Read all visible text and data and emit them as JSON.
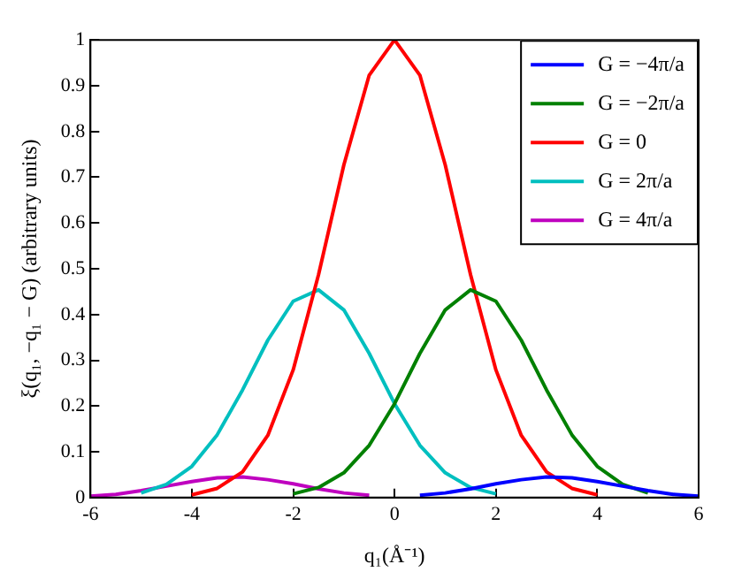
{
  "chart_data": {
    "type": "line",
    "xlabel": "q₁(Å⁻¹)",
    "ylabel": "ξ(q₁, −q₁ − G) (arbitrary units)",
    "x": [
      -6,
      -5.5,
      -5,
      -4.5,
      -4,
      -3.5,
      -3,
      -2.5,
      -2,
      -1.5,
      -1,
      -0.5,
      0,
      0.5,
      1,
      1.5,
      2,
      2.5,
      3,
      3.5,
      4,
      4.5,
      5,
      5.5,
      6
    ],
    "series": [
      {
        "name": "G = −4π/a",
        "color": "#0000ff",
        "values": [
          null,
          null,
          null,
          null,
          null,
          null,
          null,
          null,
          null,
          null,
          null,
          null,
          null,
          0.005,
          0.01,
          0.019,
          0.03,
          0.039,
          0.045,
          0.043,
          0.035,
          0.025,
          0.015,
          0.007,
          0.003
        ]
      },
      {
        "name": "G = −2π/a",
        "color": "#008000",
        "values": [
          null,
          null,
          null,
          null,
          null,
          null,
          null,
          null,
          0.008,
          0.022,
          0.054,
          0.114,
          0.205,
          0.315,
          0.41,
          0.454,
          0.429,
          0.344,
          0.235,
          0.137,
          0.068,
          0.029,
          0.01,
          null,
          null
        ]
      },
      {
        "name": "G = 0",
        "color": "#ff0000",
        "values": [
          null,
          null,
          null,
          null,
          0.006,
          0.02,
          0.056,
          0.136,
          0.279,
          0.487,
          0.727,
          0.923,
          1,
          0.923,
          0.727,
          0.487,
          0.279,
          0.136,
          0.056,
          0.02,
          0.006,
          null,
          null,
          null,
          null
        ]
      },
      {
        "name": "G = 2π/a",
        "color": "#00bfbf",
        "values": [
          null,
          null,
          0.01,
          0.029,
          0.068,
          0.137,
          0.235,
          0.344,
          0.429,
          0.454,
          0.41,
          0.315,
          0.205,
          0.114,
          0.054,
          0.022,
          0.008,
          null,
          null,
          null,
          null,
          null,
          null,
          null,
          null
        ]
      },
      {
        "name": "G = 4π/a",
        "color": "#bf00bf",
        "values": [
          0.003,
          0.007,
          0.015,
          0.025,
          0.035,
          0.043,
          0.045,
          0.039,
          0.03,
          0.019,
          0.01,
          0.005,
          null,
          null,
          null,
          null,
          null,
          null,
          null,
          null,
          null,
          null,
          null,
          null,
          null
        ]
      }
    ],
    "xlim": [
      -6,
      6
    ],
    "xticks": [
      -6,
      -4,
      -2,
      0,
      2,
      4,
      6
    ],
    "ylim": [
      0,
      1
    ],
    "yticks": [
      0,
      0.1,
      0.2,
      0.3,
      0.4,
      0.5,
      0.6,
      0.7,
      0.8,
      0.9,
      1
    ],
    "grid": false,
    "legend": "top right",
    "marker": "none",
    "line_style": "solid"
  }
}
